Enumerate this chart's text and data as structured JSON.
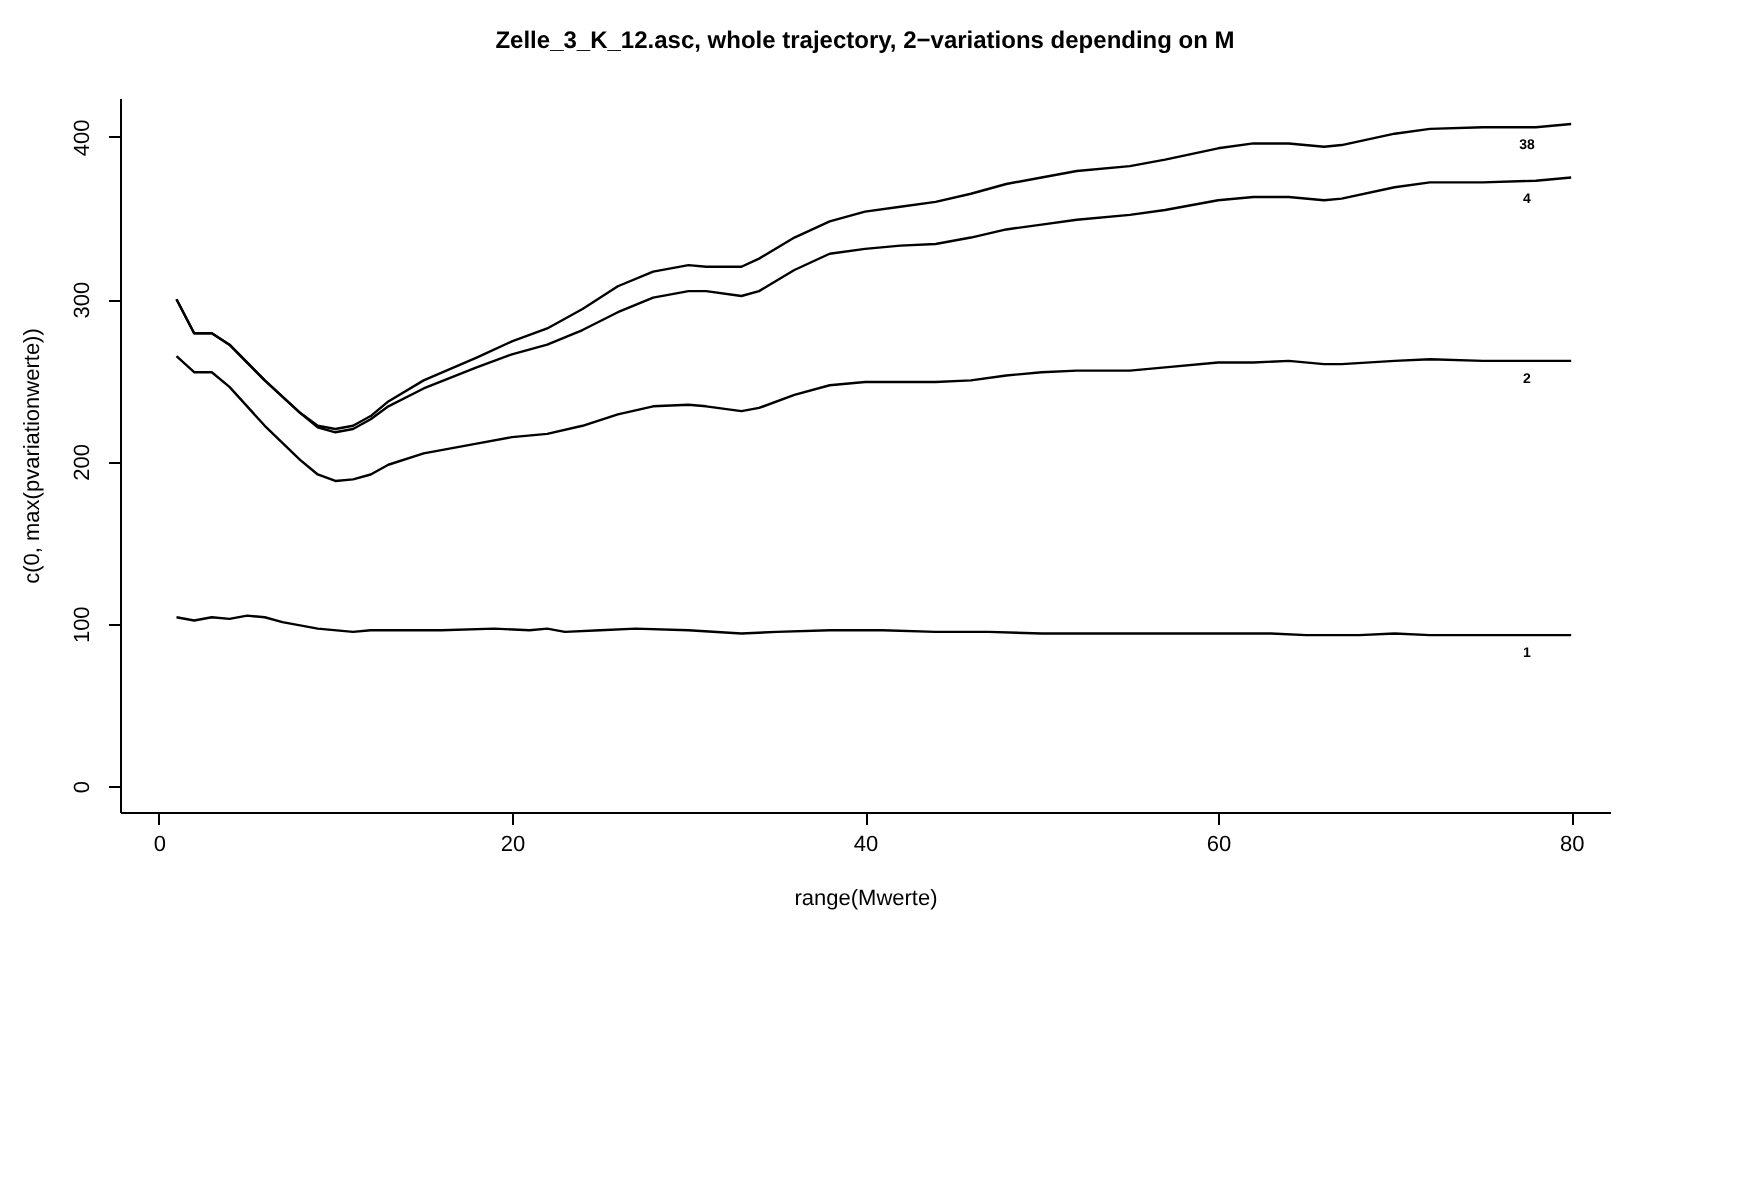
{
  "chart_data": {
    "type": "line",
    "title": "Zelle_3_K_12.asc, whole trajectory, 2−variations depending on M",
    "xlabel": "range(Mwerte)",
    "ylabel": "c(0, max(pvariationwerte))",
    "xlim": [
      -2.2,
      82.2
    ],
    "ylim": [
      -16,
      424
    ],
    "xticks": [
      0,
      20,
      40,
      60,
      80
    ],
    "yticks": [
      0,
      100,
      200,
      300,
      400
    ],
    "marker": "none",
    "line_style": "solid",
    "series": [
      {
        "name": "38",
        "color": "#000000",
        "x": [
          1,
          2,
          3,
          4,
          6,
          8,
          9,
          10,
          11,
          12,
          13,
          15,
          18,
          20,
          22,
          24,
          26,
          28,
          30,
          31,
          33,
          34,
          36,
          38,
          40,
          42,
          44,
          46,
          48,
          50,
          52,
          55,
          57,
          60,
          62,
          64,
          66,
          67,
          70,
          72,
          75,
          78,
          80
        ],
        "values": [
          300,
          279,
          279,
          272,
          250,
          230,
          222,
          220,
          222,
          228,
          237,
          250,
          264,
          274,
          282,
          294,
          308,
          317,
          321,
          320,
          320,
          325,
          338,
          348,
          354,
          357,
          360,
          365,
          371,
          375,
          379,
          382,
          386,
          393,
          396,
          396,
          394,
          395,
          402,
          405,
          406,
          406,
          408
        ]
      },
      {
        "name": "4",
        "color": "#000000",
        "x": [
          1,
          2,
          3,
          4,
          6,
          8,
          9,
          10,
          11,
          12,
          13,
          15,
          18,
          20,
          22,
          24,
          26,
          28,
          30,
          31,
          33,
          34,
          36,
          38,
          40,
          42,
          44,
          46,
          48,
          50,
          52,
          55,
          57,
          60,
          62,
          64,
          66,
          67,
          70,
          72,
          75,
          78,
          80
        ],
        "values": [
          300,
          279,
          279,
          272,
          250,
          230,
          221,
          218,
          220,
          226,
          234,
          245,
          258,
          266,
          272,
          281,
          292,
          301,
          305,
          305,
          302,
          305,
          318,
          328,
          331,
          333,
          334,
          338,
          343,
          346,
          349,
          352,
          355,
          361,
          363,
          363,
          361,
          362,
          369,
          372,
          372,
          373,
          375
        ]
      },
      {
        "name": "2",
        "color": "#000000",
        "x": [
          1,
          2,
          3,
          4,
          6,
          8,
          9,
          10,
          11,
          12,
          13,
          15,
          18,
          20,
          22,
          24,
          26,
          28,
          30,
          31,
          33,
          34,
          36,
          38,
          40,
          42,
          44,
          46,
          48,
          50,
          52,
          55,
          57,
          60,
          62,
          64,
          66,
          67,
          70,
          72,
          75,
          78,
          80
        ],
        "values": [
          265,
          255,
          255,
          246,
          222,
          201,
          192,
          188,
          189,
          192,
          198,
          205,
          211,
          215,
          217,
          222,
          229,
          234,
          235,
          234,
          231,
          233,
          241,
          247,
          249,
          249,
          249,
          250,
          253,
          255,
          256,
          256,
          258,
          261,
          261,
          262,
          260,
          260,
          262,
          263,
          262,
          262,
          262
        ]
      },
      {
        "name": "1",
        "color": "#000000",
        "x": [
          1,
          2,
          3,
          4,
          5,
          6,
          7,
          9,
          11,
          12,
          14,
          16,
          19,
          21,
          22,
          23,
          25,
          27,
          30,
          33,
          35,
          38,
          41,
          44,
          47,
          50,
          53,
          56,
          60,
          63,
          65,
          68,
          70,
          72,
          74,
          76,
          78,
          80
        ],
        "values": [
          104,
          102,
          104,
          103,
          105,
          104,
          101,
          97,
          95,
          96,
          96,
          96,
          97,
          96,
          97,
          95,
          96,
          97,
          96,
          94,
          95,
          96,
          96,
          95,
          95,
          94,
          94,
          94,
          94,
          94,
          93,
          93,
          94,
          93,
          93,
          93,
          93,
          93
        ]
      }
    ]
  }
}
